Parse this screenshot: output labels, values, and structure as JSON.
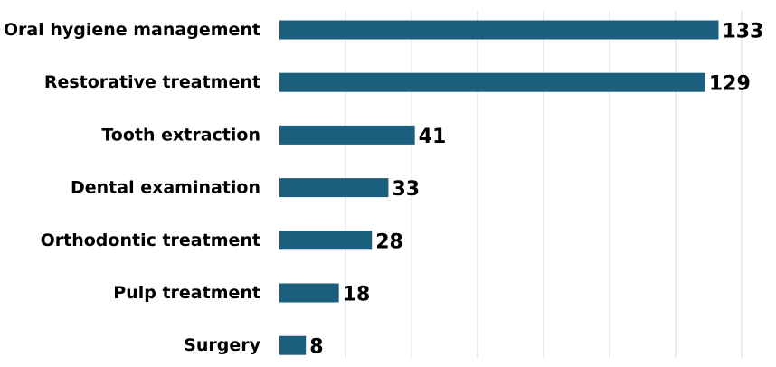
{
  "chart_data": {
    "type": "bar",
    "orientation": "horizontal",
    "categories": [
      "Oral hygiene management",
      "Restorative treatment",
      "Tooth extraction",
      "Dental examination",
      "Orthodontic treatment",
      "Pulp treatment",
      "Surgery"
    ],
    "values": [
      133,
      129,
      41,
      33,
      28,
      18,
      8
    ],
    "title": "",
    "xlabel": "",
    "ylabel": "",
    "xlim": [
      0,
      140
    ],
    "grid": true,
    "data_labels": true,
    "bar_color": "#1b5e7e"
  }
}
